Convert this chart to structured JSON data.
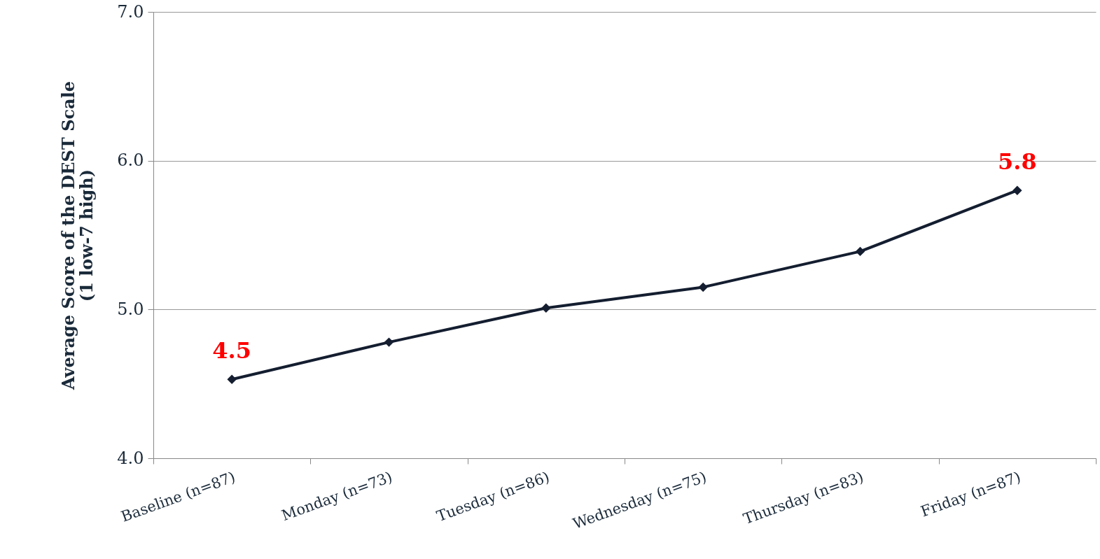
{
  "chart_data": {
    "type": "line",
    "ylabel": "Average Score  of the DEST Scale\n(1 low-7 high)",
    "categories": [
      "Baseline (n=87)",
      "Monday (n=73)",
      "Tuesday (n=86)",
      "Wednesday (n=75)",
      "Thursday (n=83)",
      "Friday (n=87)"
    ],
    "series": [
      {
        "color": "#141e30",
        "values": [
          4.53,
          4.78,
          5.01,
          5.15,
          5.39,
          5.8
        ],
        "value_labels": [
          "4.5",
          null,
          null,
          null,
          null,
          "5.8"
        ]
      }
    ],
    "ylim": [
      4,
      7
    ],
    "yticks": [
      {
        "value": 4,
        "label": "4.0"
      },
      {
        "value": 5,
        "label": "5.0"
      },
      {
        "value": 6,
        "label": "6.0"
      },
      {
        "value": 7,
        "label": "7.0"
      }
    ],
    "grid": "y",
    "marker": "diamond",
    "line_style": "solid"
  }
}
